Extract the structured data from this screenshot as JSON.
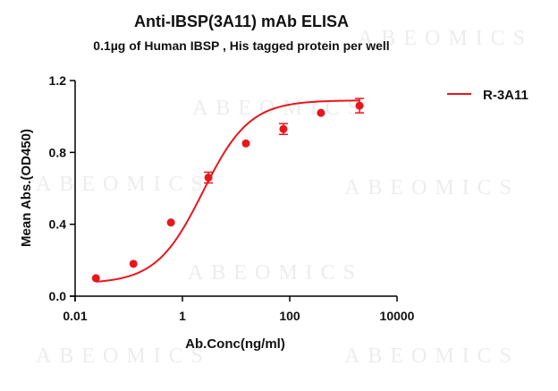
{
  "chart_data": {
    "type": "scatter",
    "title": "Anti-IBSP(3A11) mAb ELISA",
    "subtitle": "0.1µg of Human IBSP , His tagged protein per well",
    "xlabel": "Ab.Conc(ng/ml)",
    "ylabel": "Mean Abs.(OD450)",
    "x_scale": "log",
    "xlim": [
      0.01,
      10000
    ],
    "ylim": [
      0.0,
      1.2
    ],
    "x_ticks": [
      "0.01",
      "1",
      "100",
      "10000"
    ],
    "y_ticks": [
      "0.0",
      "0.4",
      "0.8",
      "1.2"
    ],
    "legend_position": "top-right",
    "series": [
      {
        "name": "R-3A11",
        "color": "#e8161c",
        "x": [
          0.0244,
          0.1221,
          0.6104,
          3.052,
          15.26,
          76.29,
          381.5,
          2000
        ],
        "y": [
          0.1,
          0.18,
          0.41,
          0.66,
          0.85,
          0.93,
          1.02,
          1.06
        ],
        "error": [
          0.0,
          0.0,
          0.0,
          0.03,
          0.0,
          0.03,
          0.0,
          0.04
        ],
        "fit": "4PL sigmoid"
      }
    ]
  },
  "watermark": "ABEOMICS"
}
